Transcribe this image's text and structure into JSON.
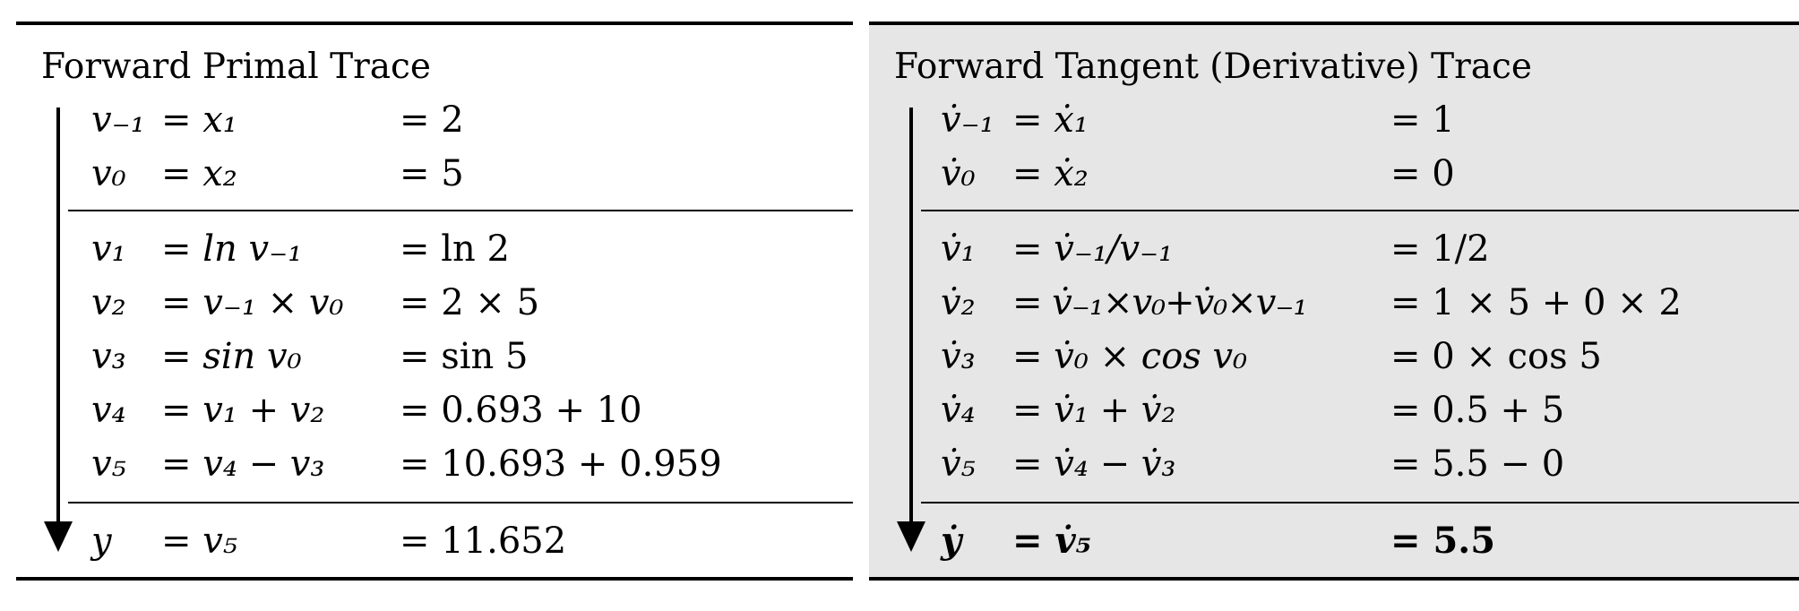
{
  "primal": {
    "title": "Forward Primal Trace",
    "rows": [
      {
        "lhs": "v₋₁",
        "expr": "= x₁",
        "value": "= 2"
      },
      {
        "lhs": "v₀",
        "expr": "= x₂",
        "value": "= 5"
      },
      {
        "lhs": "v₁",
        "expr": "= ln v₋₁",
        "value": "= ln 2"
      },
      {
        "lhs": "v₂",
        "expr": "= v₋₁ × v₀",
        "value": "= 2 × 5"
      },
      {
        "lhs": "v₃",
        "expr": "= sin v₀",
        "value": "= sin 5"
      },
      {
        "lhs": "v₄",
        "expr": "= v₁ + v₂",
        "value": "= 0.693 + 10"
      },
      {
        "lhs": "v₅",
        "expr": "= v₄ − v₃",
        "value": "= 10.693 + 0.959"
      },
      {
        "lhs": "y",
        "expr": "= v₅",
        "value": "= 11.652"
      }
    ]
  },
  "tangent": {
    "title": "Forward Tangent (Derivative) Trace",
    "rows": [
      {
        "lhs": "v̇₋₁",
        "expr": "= ẋ₁",
        "value": "= 1"
      },
      {
        "lhs": "v̇₀",
        "expr": "= ẋ₂",
        "value": "= 0"
      },
      {
        "lhs": "v̇₁",
        "expr": "= v̇₋₁/v₋₁",
        "value": "= 1/2"
      },
      {
        "lhs": "v̇₂",
        "expr": "= v̇₋₁×v₀+v̇₀×v₋₁",
        "value": "= 1 × 5 + 0 × 2"
      },
      {
        "lhs": "v̇₃",
        "expr": "= v̇₀ × cos v₀",
        "value": "= 0 × cos 5"
      },
      {
        "lhs": "v̇₄",
        "expr": "= v̇₁ + v̇₂",
        "value": "= 0.5 + 5"
      },
      {
        "lhs": "v̇₅",
        "expr": "= v̇₄ − v̇₃",
        "value": "= 5.5 − 0"
      },
      {
        "lhs": "ẏ",
        "expr": "= v̇₅",
        "value": "= 5.5"
      }
    ]
  }
}
